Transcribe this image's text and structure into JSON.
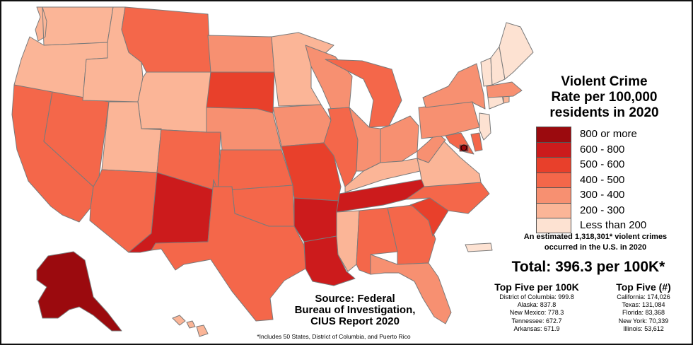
{
  "title": "Violent Crime Rate per 100,000 residents in 2020",
  "title_lines": [
    "Violent Crime",
    "Rate per 100,000",
    "residents in 2020"
  ],
  "colors": {
    "800_or_more": "#9b0a0e",
    "600_800": "#cc1b1c",
    "500_600": "#e8402b",
    "400_500": "#f4674a",
    "300_400": "#f79071",
    "200_300": "#fbb597",
    "less_200": "#fde2d2"
  },
  "legend": [
    {
      "label": "800 or more",
      "color": "#9b0a0e"
    },
    {
      "label": "600 - 800",
      "color": "#cc1b1c"
    },
    {
      "label": "500 - 600",
      "color": "#e8402b"
    },
    {
      "label": "400 - 500",
      "color": "#f4674a"
    },
    {
      "label": "300 - 400",
      "color": "#f79071"
    },
    {
      "label": "200 - 300",
      "color": "#fbb597"
    },
    {
      "label": "Less than 200",
      "color": "#fde2d2"
    }
  ],
  "estimate_lines": [
    "An estimated 1,318,301* violent crimes",
    "occurred in the U.S. in 2020"
  ],
  "total": "Total: 396.3 per 100K*",
  "top_per_100k": {
    "heading": "Top Five per 100K",
    "items": [
      "District of Columbia: 999.8",
      "Alaska: 837.8",
      "New Mexico: 778.3",
      "Tennessee: 672.7",
      "Arkansas: 671.9"
    ]
  },
  "top_count": {
    "heading": "Top Five (#)",
    "items": [
      "California: 174,026",
      "Texas: 131,084",
      "Florida: 83,368",
      "New York: 70,339",
      "Illinois: 53,612"
    ]
  },
  "source_lines": [
    "Source: Federal",
    "Bureau of Investigation,",
    "CIUS Report 2020"
  ],
  "footnote": "*Includes 50 States, District of Columbia, and Puerto Rico",
  "map_states": [
    {
      "name": "Washington",
      "bin": "200_300"
    },
    {
      "name": "Oregon",
      "bin": "200_300"
    },
    {
      "name": "California",
      "bin": "400_500"
    },
    {
      "name": "Nevada",
      "bin": "400_500"
    },
    {
      "name": "Idaho",
      "bin": "200_300"
    },
    {
      "name": "Montana",
      "bin": "400_500"
    },
    {
      "name": "Wyoming",
      "bin": "200_300"
    },
    {
      "name": "Utah",
      "bin": "200_300"
    },
    {
      "name": "Arizona",
      "bin": "400_500"
    },
    {
      "name": "New Mexico",
      "bin": "600_800"
    },
    {
      "name": "Colorado",
      "bin": "400_500"
    },
    {
      "name": "North Dakota",
      "bin": "300_400"
    },
    {
      "name": "South Dakota",
      "bin": "500_600"
    },
    {
      "name": "Nebraska",
      "bin": "300_400"
    },
    {
      "name": "Kansas",
      "bin": "400_500"
    },
    {
      "name": "Oklahoma",
      "bin": "400_500"
    },
    {
      "name": "Texas",
      "bin": "400_500"
    },
    {
      "name": "Minnesota",
      "bin": "200_300"
    },
    {
      "name": "Iowa",
      "bin": "300_400"
    },
    {
      "name": "Missouri",
      "bin": "500_600"
    },
    {
      "name": "Arkansas",
      "bin": "600_800"
    },
    {
      "name": "Louisiana",
      "bin": "600_800"
    },
    {
      "name": "Wisconsin",
      "bin": "300_400"
    },
    {
      "name": "Illinois",
      "bin": "400_500"
    },
    {
      "name": "Michigan",
      "bin": "400_500"
    },
    {
      "name": "Indiana",
      "bin": "300_400"
    },
    {
      "name": "Ohio",
      "bin": "300_400"
    },
    {
      "name": "Kentucky",
      "bin": "200_300"
    },
    {
      "name": "Tennessee",
      "bin": "600_800"
    },
    {
      "name": "Mississippi",
      "bin": "200_300"
    },
    {
      "name": "Alabama",
      "bin": "400_500"
    },
    {
      "name": "Georgia",
      "bin": "400_500"
    },
    {
      "name": "Florida",
      "bin": "300_400"
    },
    {
      "name": "South Carolina",
      "bin": "500_600"
    },
    {
      "name": "North Carolina",
      "bin": "400_500"
    },
    {
      "name": "Virginia",
      "bin": "200_300"
    },
    {
      "name": "West Virginia",
      "bin": "300_400"
    },
    {
      "name": "Pennsylvania",
      "bin": "300_400"
    },
    {
      "name": "New York",
      "bin": "300_400"
    },
    {
      "name": "Maryland",
      "bin": "400_500"
    },
    {
      "name": "Delaware",
      "bin": "400_500"
    },
    {
      "name": "District of Columbia",
      "bin": "800_or_more"
    },
    {
      "name": "New Jersey",
      "bin": "less_200"
    },
    {
      "name": "Connecticut",
      "bin": "less_200"
    },
    {
      "name": "Rhode Island",
      "bin": "200_300"
    },
    {
      "name": "Massachusetts",
      "bin": "300_400"
    },
    {
      "name": "Vermont",
      "bin": "less_200"
    },
    {
      "name": "New Hampshire",
      "bin": "less_200"
    },
    {
      "name": "Maine",
      "bin": "less_200"
    },
    {
      "name": "Alaska",
      "bin": "800_or_more"
    },
    {
      "name": "Hawaii",
      "bin": "200_300"
    },
    {
      "name": "Puerto Rico",
      "bin": "less_200"
    }
  ]
}
